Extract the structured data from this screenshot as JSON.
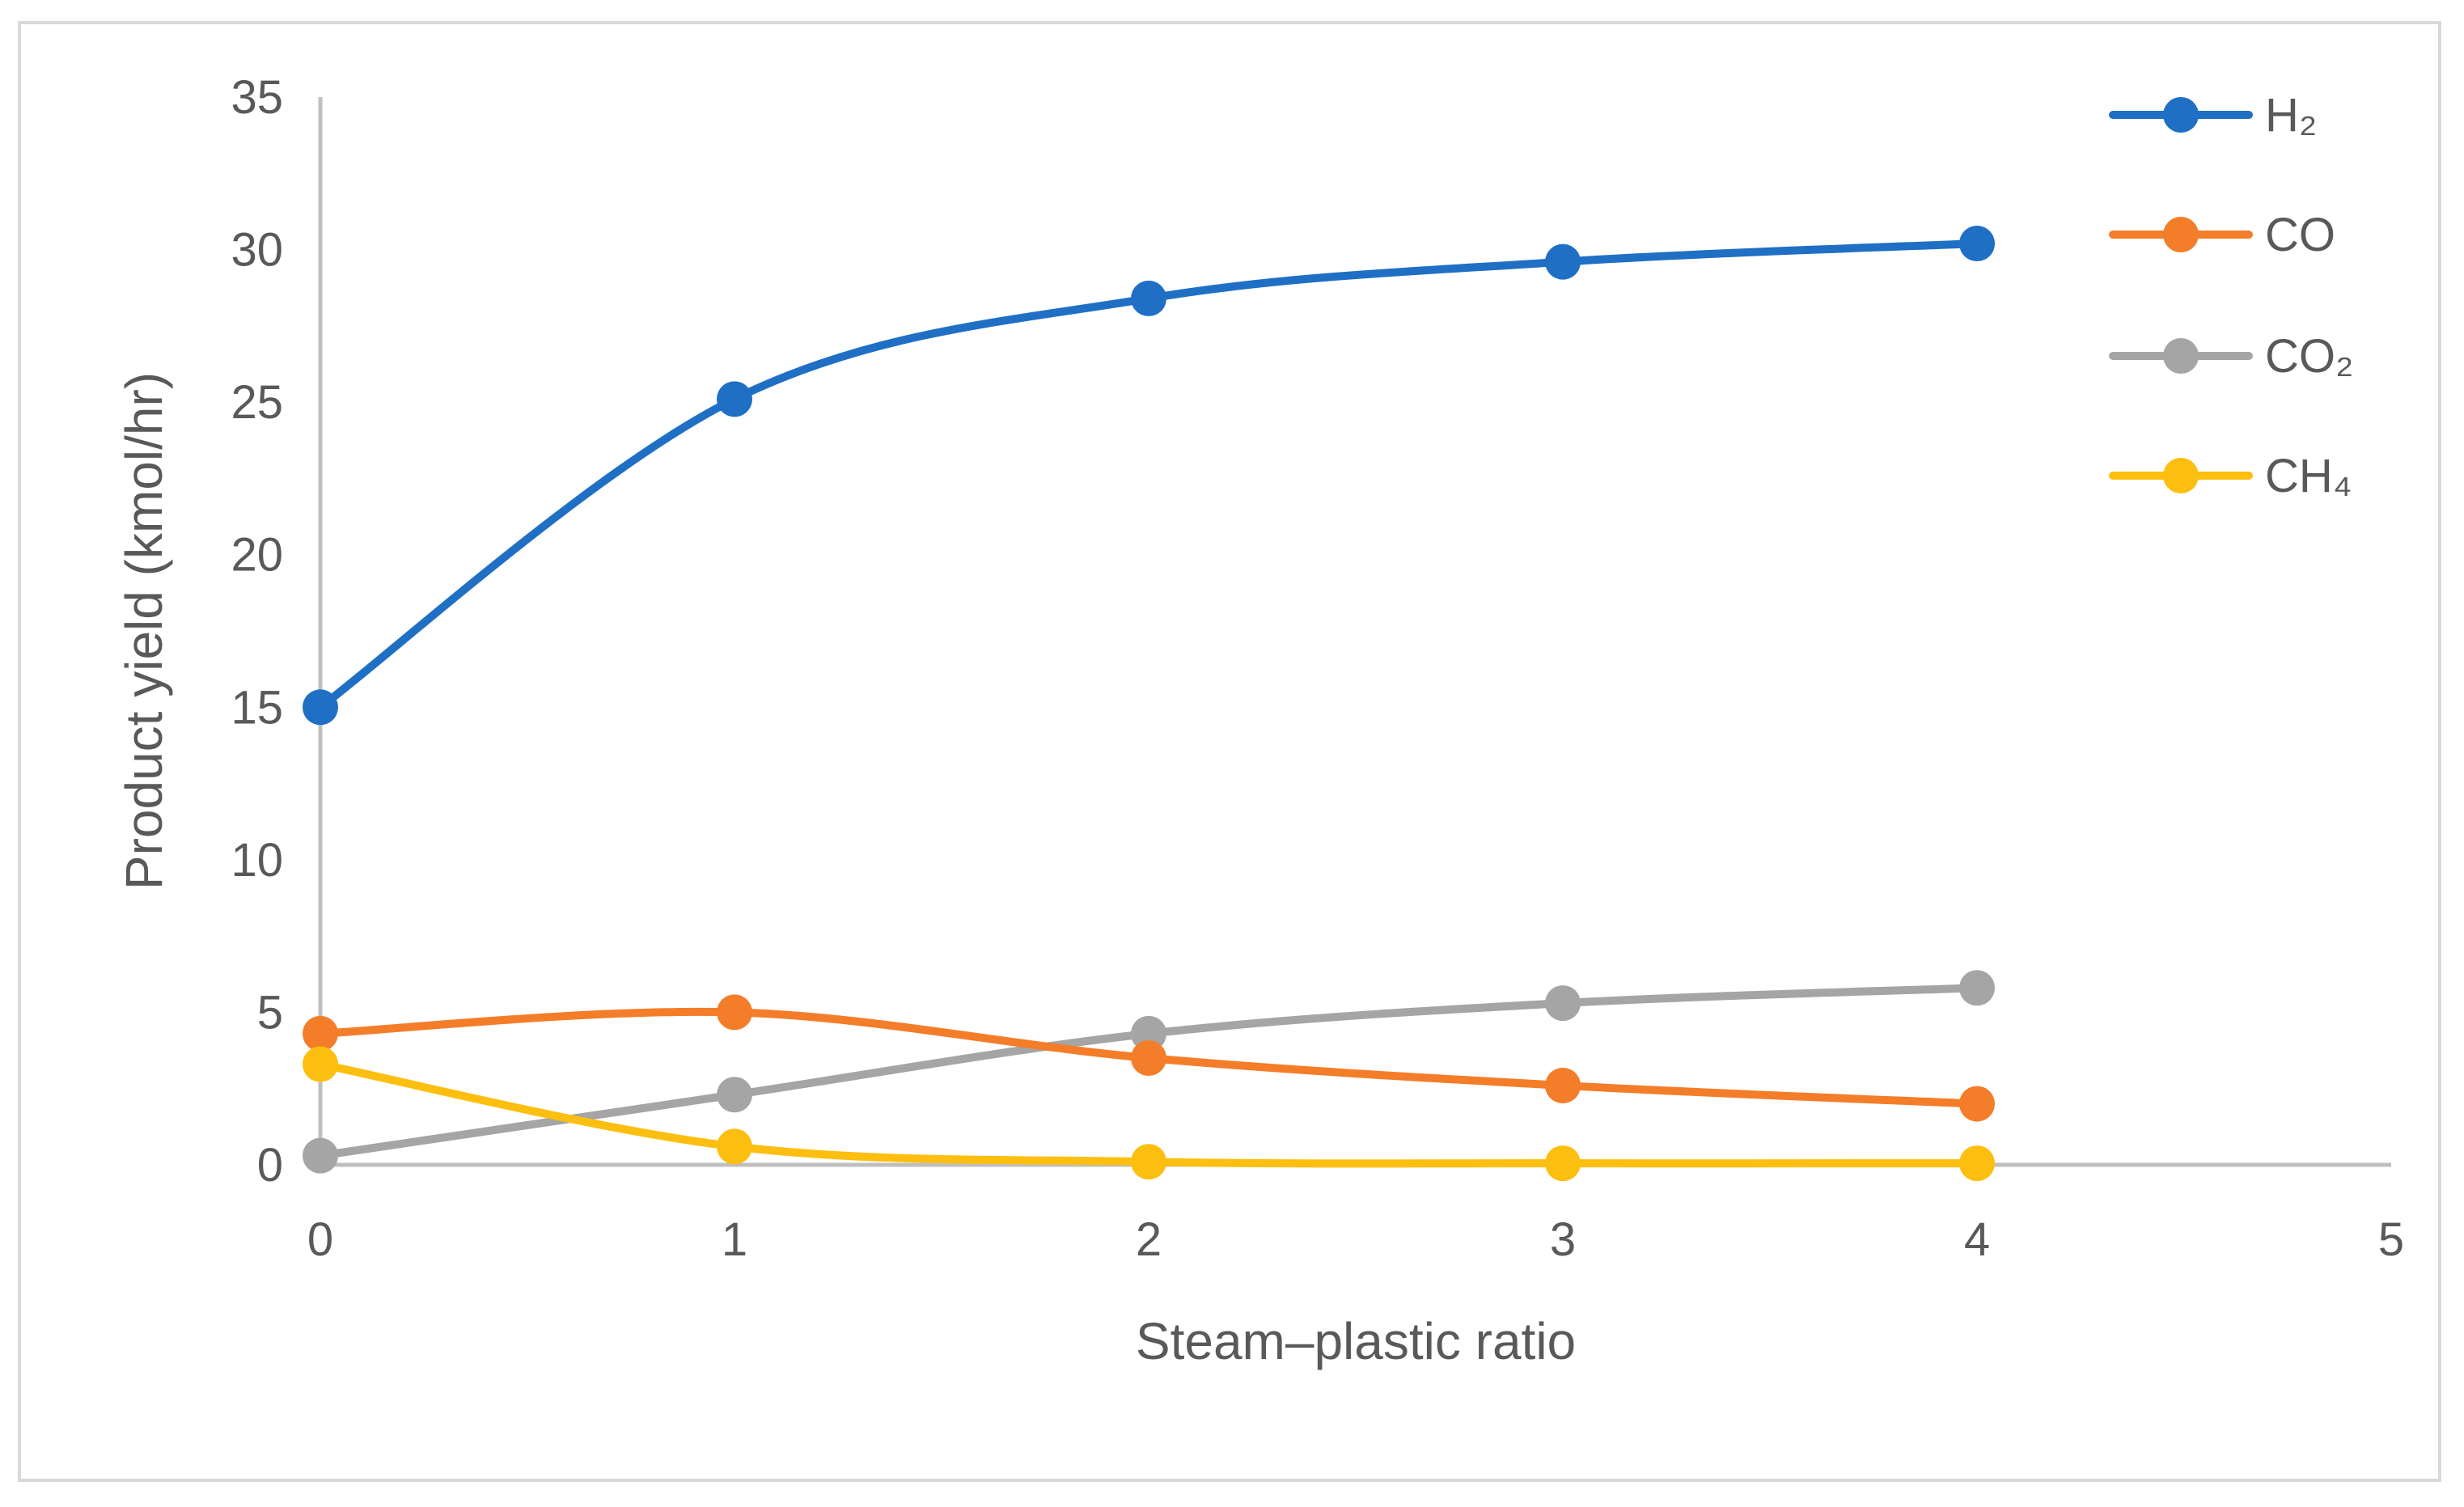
{
  "chart_data": {
    "type": "line",
    "title": "",
    "xlabel": "Steam–plastic ratio",
    "ylabel": "Product yield (kmol/hr)",
    "xlim": [
      0,
      5
    ],
    "ylim": [
      0,
      35
    ],
    "x_ticks": [
      "0",
      "1",
      "2",
      "3",
      "4",
      "5"
    ],
    "y_ticks": [
      "0",
      "5",
      "10",
      "15",
      "20",
      "25",
      "30",
      "35"
    ],
    "grid": false,
    "legend_position": "top-right",
    "x": [
      0,
      1,
      2,
      3,
      4
    ],
    "series": [
      {
        "name": "H₂",
        "color": "#1f6fc5",
        "values": [
          15.0,
          25.1,
          28.4,
          29.6,
          30.2
        ]
      },
      {
        "name": "CO",
        "color": "#f47d2a",
        "values": [
          4.3,
          5.0,
          3.5,
          2.6,
          2.0
        ]
      },
      {
        "name": "CO₂",
        "color": "#a5a5a5",
        "values": [
          0.3,
          2.3,
          4.3,
          5.3,
          5.8
        ]
      },
      {
        "name": "CH₄",
        "color": "#fdbf0f",
        "values": [
          3.3,
          0.6,
          0.1,
          0.05,
          0.05
        ]
      }
    ]
  }
}
